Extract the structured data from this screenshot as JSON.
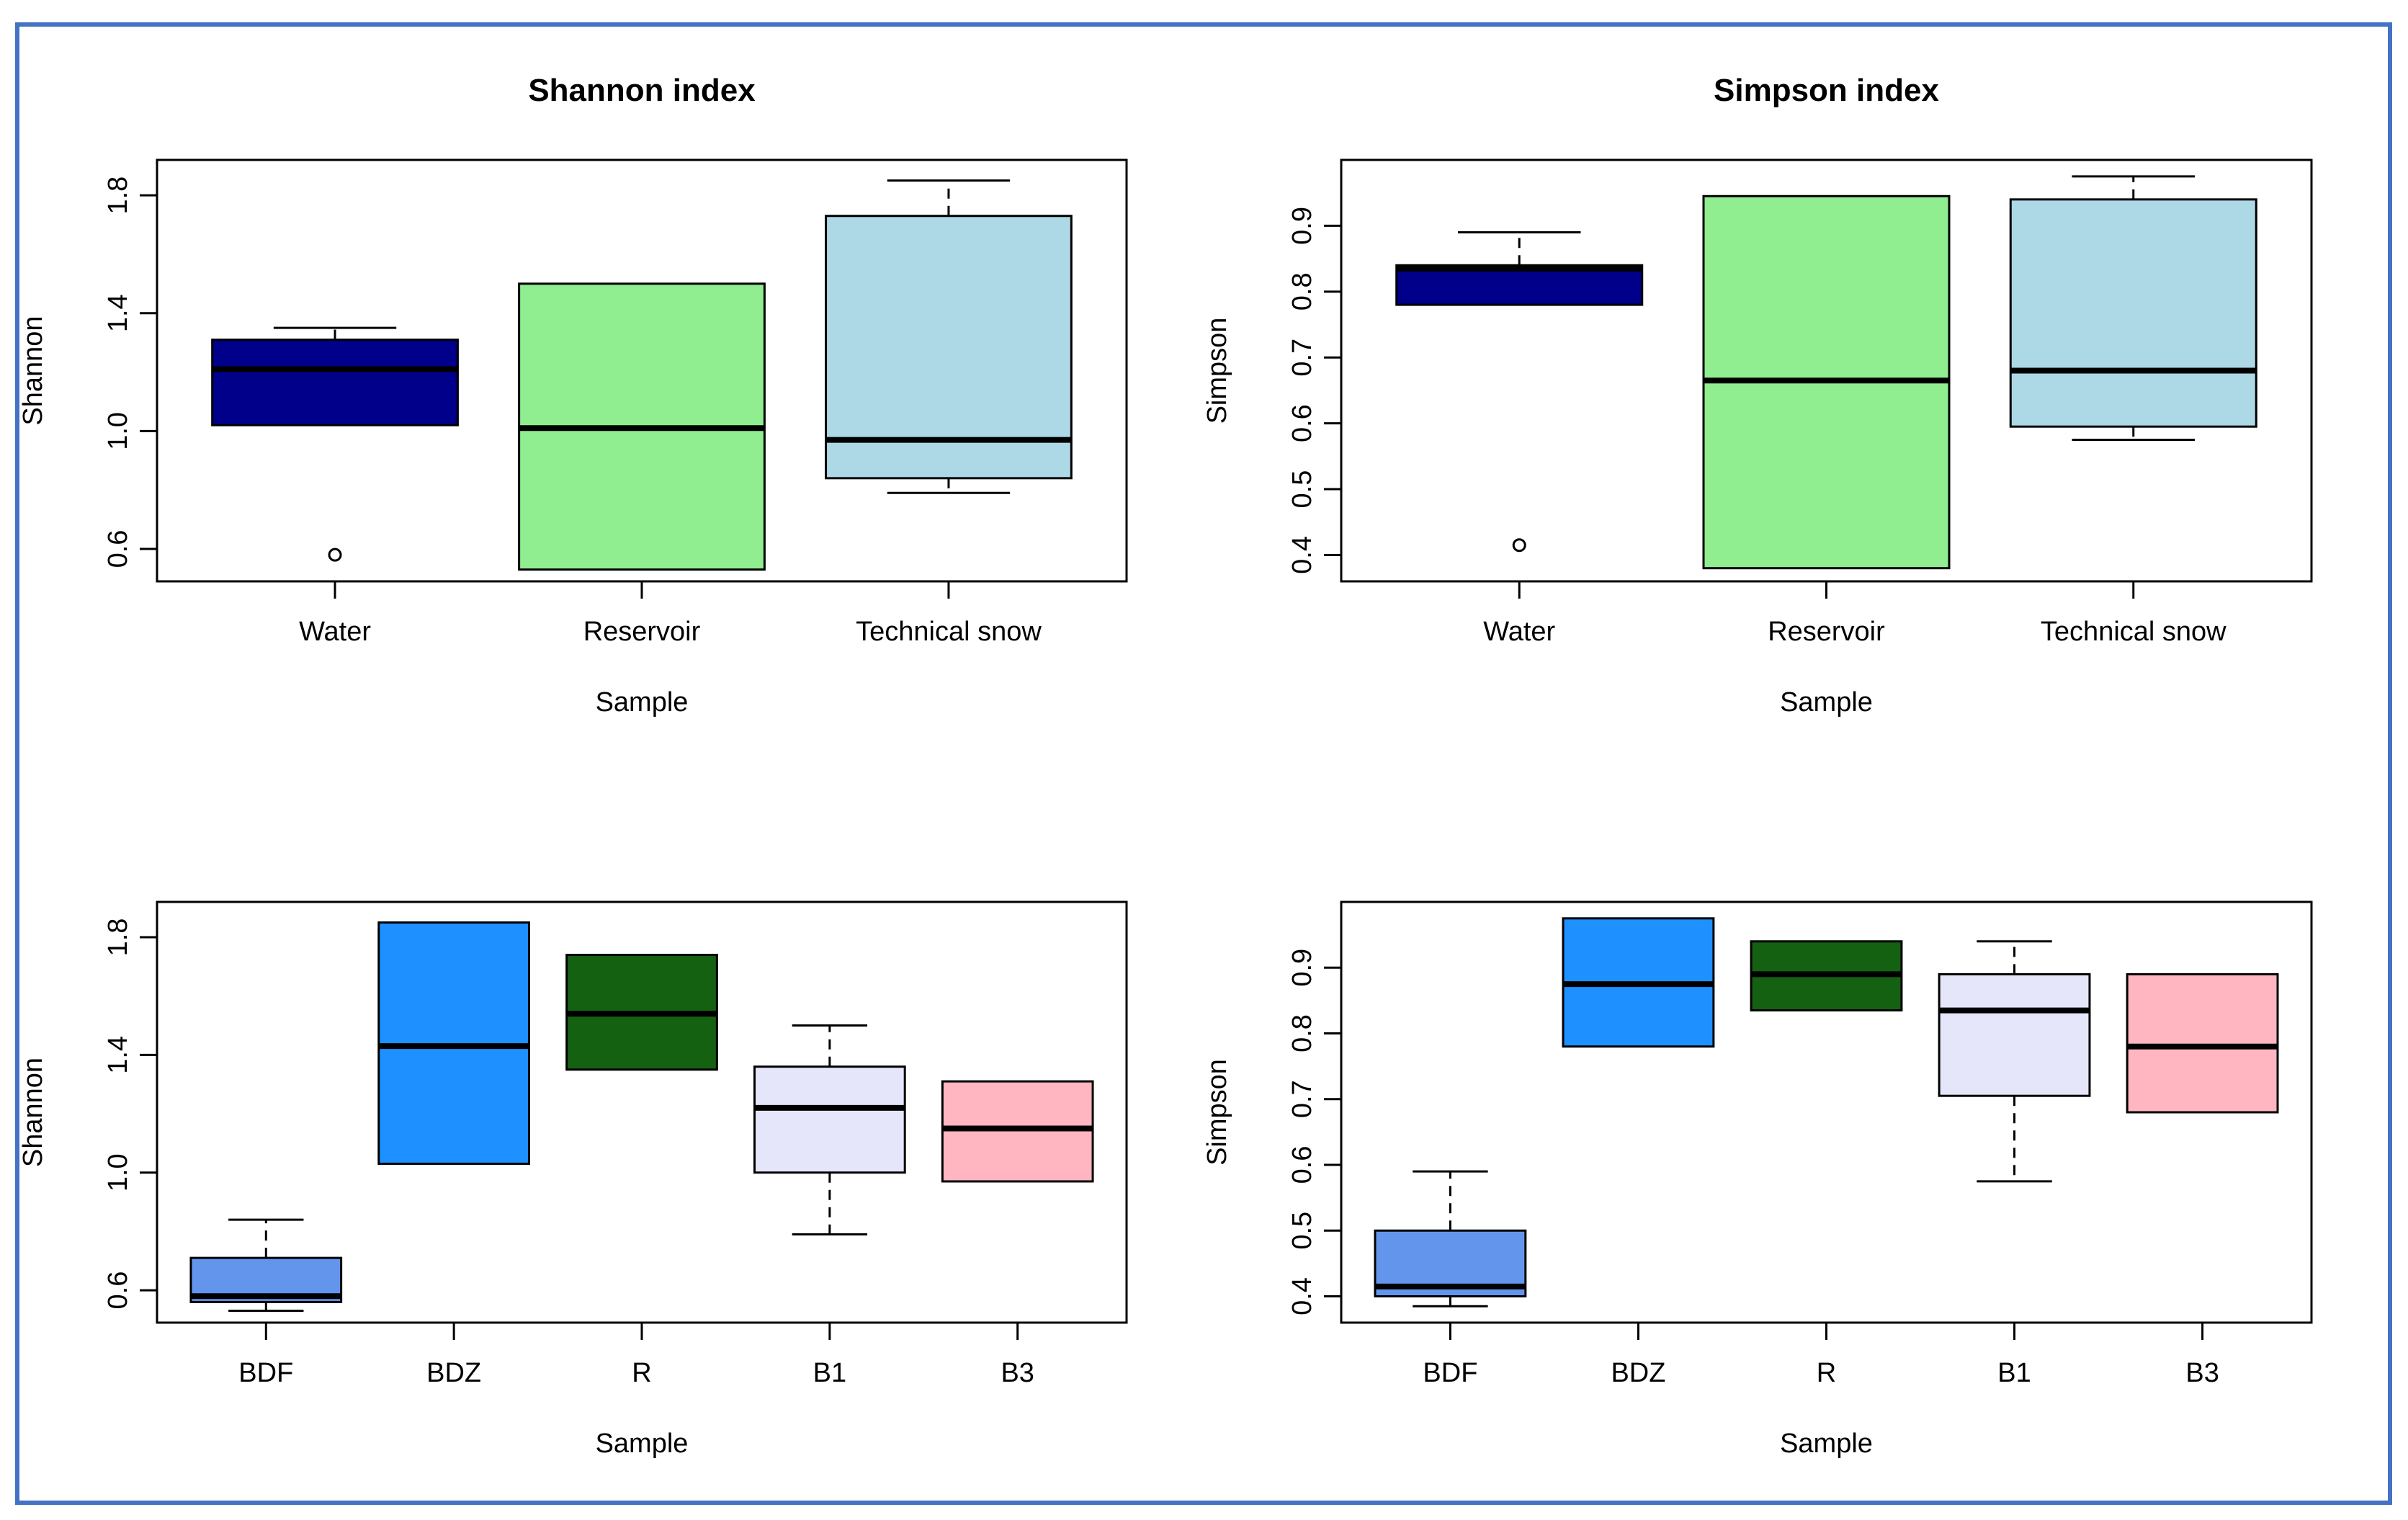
{
  "frame_color": "#4472C4",
  "chart_data": [
    {
      "type": "boxplot",
      "title": "Shannon index",
      "xlabel": "Sample",
      "ylabel": "Shannon",
      "ylim": [
        0.49,
        1.92
      ],
      "yticks": [
        "0.6",
        "1.0",
        "1.4",
        "1.8"
      ],
      "categories": [
        {
          "name": "Water",
          "color": "#00008B",
          "q1": 1.02,
          "median": 1.21,
          "q3": 1.31,
          "whisker_low": 1.02,
          "whisker_high": 1.35,
          "outliers": [
            0.58
          ]
        },
        {
          "name": "Reservoir",
          "color": "#90EE90",
          "q1": 0.53,
          "median": 1.01,
          "q3": 1.5,
          "whisker_low": 0.53,
          "whisker_high": 1.5,
          "outliers": []
        },
        {
          "name": "Technical snow",
          "color": "#ADD8E6",
          "q1": 0.84,
          "median": 0.97,
          "q3": 1.73,
          "whisker_low": 0.79,
          "whisker_high": 1.85,
          "outliers": []
        }
      ]
    },
    {
      "type": "boxplot",
      "title": "Simpson index",
      "xlabel": "Sample",
      "ylabel": "Simpson",
      "ylim": [
        0.36,
        1.0
      ],
      "yticks": [
        "0.4",
        "0.5",
        "0.6",
        "0.7",
        "0.8",
        "0.9"
      ],
      "categories": [
        {
          "name": "Water",
          "color": "#00008B",
          "q1": 0.78,
          "median": 0.835,
          "q3": 0.84,
          "whisker_low": 0.78,
          "whisker_high": 0.89,
          "outliers": [
            0.415
          ]
        },
        {
          "name": "Reservoir",
          "color": "#90EE90",
          "q1": 0.38,
          "median": 0.665,
          "q3": 0.945,
          "whisker_low": 0.38,
          "whisker_high": 0.945,
          "outliers": []
        },
        {
          "name": "Technical snow",
          "color": "#ADD8E6",
          "q1": 0.595,
          "median": 0.68,
          "q3": 0.94,
          "whisker_low": 0.575,
          "whisker_high": 0.975,
          "outliers": []
        }
      ]
    },
    {
      "type": "boxplot",
      "title": "",
      "xlabel": "Sample",
      "ylabel": "Shannon",
      "ylim": [
        0.49,
        1.92
      ],
      "yticks": [
        "0.6",
        "1.0",
        "1.4",
        "1.8"
      ],
      "categories": [
        {
          "name": "BDF",
          "color": "#6495ED",
          "q1": 0.56,
          "median": 0.58,
          "q3": 0.71,
          "whisker_low": 0.53,
          "whisker_high": 0.84,
          "outliers": []
        },
        {
          "name": "BDZ",
          "color": "#1E90FF",
          "q1": 1.03,
          "median": 1.43,
          "q3": 1.85,
          "whisker_low": 1.03,
          "whisker_high": 1.85,
          "outliers": []
        },
        {
          "name": "R",
          "color": "#156112",
          "q1": 1.35,
          "median": 1.54,
          "q3": 1.74,
          "whisker_low": 1.35,
          "whisker_high": 1.74,
          "outliers": []
        },
        {
          "name": "B1",
          "color": "#E6E6FA",
          "q1": 1.0,
          "median": 1.22,
          "q3": 1.36,
          "whisker_low": 0.79,
          "whisker_high": 1.5,
          "outliers": []
        },
        {
          "name": "B3",
          "color": "#FFB6C1",
          "q1": 0.97,
          "median": 1.15,
          "q3": 1.31,
          "whisker_low": 0.97,
          "whisker_high": 1.31,
          "outliers": []
        }
      ]
    },
    {
      "type": "boxplot",
      "title": "",
      "xlabel": "Sample",
      "ylabel": "Simpson",
      "ylim": [
        0.36,
        1.0
      ],
      "yticks": [
        "0.4",
        "0.5",
        "0.6",
        "0.7",
        "0.8",
        "0.9"
      ],
      "categories": [
        {
          "name": "BDF",
          "color": "#6495ED",
          "q1": 0.4,
          "median": 0.415,
          "q3": 0.5,
          "whisker_low": 0.385,
          "whisker_high": 0.59,
          "outliers": []
        },
        {
          "name": "BDZ",
          "color": "#1E90FF",
          "q1": 0.78,
          "median": 0.875,
          "q3": 0.975,
          "whisker_low": 0.78,
          "whisker_high": 0.975,
          "outliers": []
        },
        {
          "name": "R",
          "color": "#156112",
          "q1": 0.835,
          "median": 0.89,
          "q3": 0.94,
          "whisker_low": 0.835,
          "whisker_high": 0.94,
          "outliers": []
        },
        {
          "name": "B1",
          "color": "#E6E6FA",
          "q1": 0.705,
          "median": 0.835,
          "q3": 0.89,
          "whisker_low": 0.575,
          "whisker_high": 0.94,
          "outliers": []
        },
        {
          "name": "B3",
          "color": "#FFB6C1",
          "q1": 0.68,
          "median": 0.78,
          "q3": 0.89,
          "whisker_low": 0.68,
          "whisker_high": 0.89,
          "outliers": []
        }
      ]
    }
  ]
}
